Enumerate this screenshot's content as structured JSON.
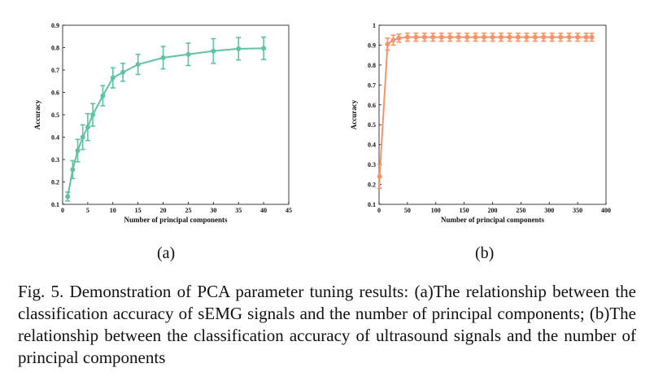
{
  "chart_data": [
    {
      "type": "line",
      "panel_label": "(a)",
      "xlabel": "Number of principal components",
      "ylabel": "Accuracy",
      "xlim": [
        0,
        45
      ],
      "ylim": [
        0.1,
        0.9
      ],
      "xticks": [
        0,
        5,
        10,
        15,
        20,
        25,
        30,
        35,
        40,
        45
      ],
      "yticks": [
        0.1,
        0.2,
        0.3,
        0.4,
        0.5,
        0.6,
        0.7,
        0.8,
        0.9
      ],
      "grid": false,
      "color": "#5cc4a0",
      "series": [
        {
          "x": [
            1,
            2,
            3,
            4,
            5,
            6,
            8,
            10,
            12,
            15,
            20,
            25,
            30,
            35,
            40
          ],
          "y": [
            0.135,
            0.255,
            0.34,
            0.4,
            0.445,
            0.5,
            0.585,
            0.665,
            0.69,
            0.725,
            0.755,
            0.77,
            0.785,
            0.795,
            0.797
          ],
          "err": [
            0.02,
            0.04,
            0.05,
            0.055,
            0.06,
            0.05,
            0.045,
            0.045,
            0.04,
            0.045,
            0.05,
            0.05,
            0.055,
            0.05,
            0.05
          ]
        }
      ]
    },
    {
      "type": "line",
      "panel_label": "(b)",
      "xlabel": "Number of principal components",
      "ylabel": "Accuracy",
      "xlim": [
        0,
        400
      ],
      "ylim": [
        0.1,
        1.0
      ],
      "xticks": [
        0,
        50,
        100,
        150,
        200,
        250,
        300,
        350,
        400
      ],
      "yticks": [
        0.1,
        0.2,
        0.3,
        0.4,
        0.5,
        0.6,
        0.7,
        0.8,
        0.9,
        1
      ],
      "grid": false,
      "color": "#f4946a",
      "series": [
        {
          "x": [
            1,
            15,
            25,
            35,
            50,
            65,
            80,
            95,
            110,
            125,
            140,
            155,
            170,
            185,
            200,
            215,
            230,
            245,
            260,
            275,
            290,
            305,
            320,
            335,
            350,
            365,
            375
          ],
          "y": [
            0.24,
            0.905,
            0.925,
            0.935,
            0.94,
            0.94,
            0.94,
            0.94,
            0.94,
            0.94,
            0.94,
            0.94,
            0.94,
            0.94,
            0.94,
            0.94,
            0.94,
            0.94,
            0.94,
            0.94,
            0.94,
            0.94,
            0.94,
            0.94,
            0.94,
            0.94,
            0.94
          ],
          "err": [
            0.06,
            0.03,
            0.025,
            0.02,
            0.02,
            0.02,
            0.02,
            0.02,
            0.02,
            0.02,
            0.02,
            0.02,
            0.02,
            0.02,
            0.02,
            0.02,
            0.02,
            0.02,
            0.02,
            0.02,
            0.02,
            0.02,
            0.02,
            0.02,
            0.02,
            0.02,
            0.02
          ]
        }
      ]
    }
  ],
  "caption": "Fig. 5.  Demonstration of PCA parameter tuning results: (a)The relationship between the classification accuracy of sEMG signals and the number of principal components; (b)The relationship between the classification accuracy of ultrasound signals and the number of principal components"
}
